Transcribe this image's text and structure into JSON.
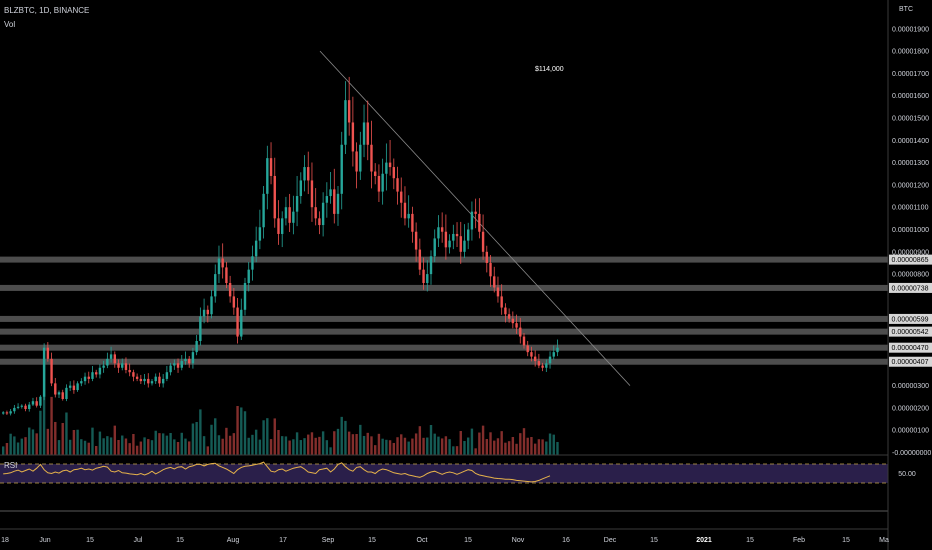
{
  "header": {
    "symbol_line": "BLZBTC, 1D, BINANCE",
    "volume_label": "Vol",
    "currency": "BTC",
    "note": "$114,000"
  },
  "rsi": {
    "label": "RSI",
    "level_label": "50.00"
  },
  "colors": {
    "background": "#000000",
    "up": "#26a69a",
    "down": "#ef5350",
    "rsi_line": "#e6b24a",
    "rsi_band": "#2a1f4a",
    "rsi_dash": "#c8a84a",
    "trendline": "#8a8a8a",
    "level_band": "#5a5a5a"
  },
  "chart_data": {
    "type": "candlestick",
    "y_ticks": [
      "0.00001900",
      "0.00001800",
      "0.00001700",
      "0.00001600",
      "0.00001500",
      "0.00001400",
      "0.00001300",
      "0.00001200",
      "0.00001100",
      "0.00001000",
      "0.00000900",
      "0.00000800",
      "0.00000300",
      "0.00000200",
      "0.00000100",
      "-0.00000000"
    ],
    "ylim": [
      -1e-07,
      1.95e-05
    ],
    "x_ticks": [
      "18",
      "Jun",
      "15",
      "Jul",
      "15",
      "Aug",
      "17",
      "Sep",
      "15",
      "Oct",
      "15",
      "Nov",
      "16",
      "Dec",
      "15",
      "2021",
      "15",
      "Feb",
      "15",
      "Ma"
    ],
    "horizontal_levels": [
      {
        "value": 8.65e-06,
        "label": "0.00000865"
      },
      {
        "value": 7.38e-06,
        "label": "0.00000738"
      },
      {
        "value": 5.99e-06,
        "label": "0.00000599"
      },
      {
        "value": 5.42e-06,
        "label": "0.00000542"
      },
      {
        "value": 4.7e-06,
        "label": "0.00000470"
      },
      {
        "value": 4.07e-06,
        "label": "0.00000407"
      }
    ],
    "trendline": {
      "from": {
        "date": "Aug 28",
        "value": 1.8e-05
      },
      "to": {
        "date": "Dec 8",
        "value": 3e-06
      }
    },
    "close": [
      1.8e-06,
      1.75e-06,
      1.85e-06,
      2e-06,
      2.05e-06,
      2.1e-06,
      1.95e-06,
      2.15e-06,
      2.3e-06,
      2.1e-06,
      2.5e-06,
      4.7e-06,
      4.2e-06,
      3.1e-06,
      2.6e-06,
      2.7e-06,
      2.4e-06,
      2.9e-06,
      3e-06,
      2.8e-06,
      3.1e-06,
      3.2e-06,
      3.4e-06,
      3.3e-06,
      3.6e-06,
      3.5e-06,
      3.8e-06,
      3.9e-06,
      4.2e-06,
      4.4e-06,
      4e-06,
      3.8e-06,
      4e-06,
      3.7e-06,
      3.6e-06,
      3.4e-06,
      3.3e-06,
      3.2e-06,
      3.3e-06,
      3.1e-06,
      3.2e-06,
      3.4e-06,
      3.1e-06,
      3.3e-06,
      3.6e-06,
      3.9e-06,
      4e-06,
      3.8e-06,
      4.1e-06,
      4.2e-06,
      4e-06,
      4.5e-06,
      5e-06,
      6.1e-06,
      6.4e-06,
      6.2e-06,
      7e-06,
      8e-06,
      8.7e-06,
      8.3e-06,
      7.6e-06,
      7e-06,
      6.5e-06,
      5.2e-06,
      6.4e-06,
      7.6e-06,
      8.2e-06,
      8.8e-06,
      9.5e-06,
      1.01e-05,
      1.16e-05,
      1.32e-05,
      1.24e-05,
      1.05e-05,
      9.8e-06,
      1.05e-05,
      1.1e-05,
      1.03e-05,
      1.08e-05,
      1.15e-05,
      1.22e-05,
      1.28e-05,
      1.22e-05,
      1.1e-05,
      1.05e-05,
      1.02e-05,
      1.12e-05,
      1.15e-05,
      1.18e-05,
      1.07e-05,
      1.16e-05,
      1.38e-05,
      1.58e-05,
      1.48e-05,
      1.35e-05,
      1.26e-05,
      1.38e-05,
      1.48e-05,
      1.38e-05,
      1.26e-05,
      1.24e-05,
      1.17e-05,
      1.25e-05,
      1.3e-05,
      1.28e-05,
      1.23e-05,
      1.17e-05,
      1.12e-05,
      1.05e-05,
      1.07e-05,
      9.9e-06,
      9.1e-06,
      8.2e-06,
      7.6e-06,
      8e-06,
      8.8e-06,
      9.6e-06,
      1.01e-05,
      9.9e-06,
      9.2e-06,
      9.5e-06,
      9.8e-06,
      9.7e-06,
      9e-06,
      9.5e-06,
      1e-05,
      1.08e-05,
      1.07e-05,
      9.9e-06,
      9e-06,
      8.5e-06,
      7.9e-06,
      7.4e-06,
      7e-06,
      6.5e-06,
      6.2e-06,
      6e-06,
      5.8e-06,
      5.6e-06,
      5.2e-06,
      4.8e-06,
      4.5e-06,
      4.3e-06,
      4.1e-06,
      3.9e-06,
      3.8e-06,
      4e-06,
      4.3e-06,
      4.5e-06,
      4.7e-06
    ],
    "rsi": [
      45,
      46,
      48,
      52,
      55,
      50,
      54,
      58,
      52,
      60,
      70,
      56,
      48,
      46,
      50,
      47,
      53,
      55,
      50,
      56,
      57,
      60,
      56,
      58,
      55,
      60,
      62,
      65,
      63,
      52,
      50,
      54,
      48,
      47,
      45,
      44,
      43,
      46,
      42,
      46,
      52,
      45,
      50,
      56,
      60,
      62,
      58,
      63,
      64,
      58,
      64,
      66,
      70,
      70,
      66,
      70,
      72,
      73,
      66,
      62,
      58,
      52,
      46,
      56,
      62,
      65,
      66,
      68,
      70,
      72,
      76,
      64,
      52,
      50,
      56,
      58,
      52,
      56,
      60,
      62,
      64,
      58,
      50,
      48,
      46,
      56,
      58,
      60,
      50,
      58,
      70,
      74,
      64,
      56,
      52,
      62,
      64,
      56,
      50,
      50,
      46,
      54,
      58,
      56,
      52,
      48,
      46,
      44,
      46,
      42,
      40,
      38,
      36,
      40,
      46,
      50,
      52,
      48,
      44,
      48,
      50,
      48,
      44,
      48,
      52,
      56,
      54,
      46,
      42,
      40,
      38,
      36,
      34,
      33,
      32,
      31,
      31,
      30,
      28,
      27,
      26,
      25,
      24,
      25,
      28,
      32,
      36,
      40
    ]
  }
}
